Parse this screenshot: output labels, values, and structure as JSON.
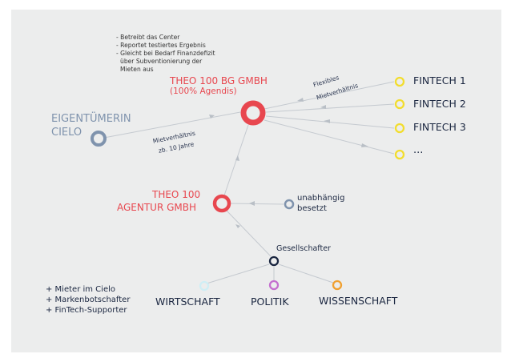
{
  "notes": {
    "lines": [
      "- Betreibt das Center",
      "- Reportet testiertes Ergebnis",
      "- Gleicht bei Bedarf Finanzdefizit",
      "  über Subventionierung der",
      "  Mieten aus"
    ]
  },
  "nodes": {
    "theo_bg": {
      "title": "THEO 100 BG GMBH",
      "subtitle": "(100% Agendis)",
      "color": "#e8474f"
    },
    "eigentuemerin": {
      "line1": "EIGENTÜMERIN",
      "line2": "CIELO",
      "color": "#7f93ad"
    },
    "fintech1": {
      "label": "FINTECH 1",
      "color": "#f2dd2e"
    },
    "fintech2": {
      "label": "FINTECH 2",
      "color": "#f2dd2e"
    },
    "fintech3": {
      "label": "FINTECH 3",
      "color": "#f2dd2e"
    },
    "fintech_more": {
      "label": "...",
      "color": "#f2dd2e"
    },
    "theo_agentur": {
      "line1": "THEO 100",
      "line2": "AGENTUR GMBH",
      "color": "#e8474f"
    },
    "unabhaengig": {
      "line1": "unabhängig",
      "line2": "besetzt",
      "color": "#7f93ad"
    },
    "gesellschafter": {
      "label": "Gesellschafter",
      "color": "#1a2640"
    },
    "wirtschaft": {
      "label": "WIRTSCHAFT",
      "color": "#cfeef5"
    },
    "politik": {
      "label": "POLITIK",
      "color": "#c46fcf"
    },
    "wissenschaft": {
      "label": "WISSENSCHAFT",
      "color": "#f0a030"
    }
  },
  "edges": {
    "flexibles": {
      "line1": "Flexibles",
      "line2": "Mietverhältnis"
    },
    "mietverhaeltnis": {
      "line1": "Mietverhältnis",
      "line2": "zb. 10 Jahre"
    }
  },
  "footnotes": [
    "+ Mieter im Cielo",
    "+ Markenbotschafter",
    "+ FinTech-Supporter"
  ]
}
